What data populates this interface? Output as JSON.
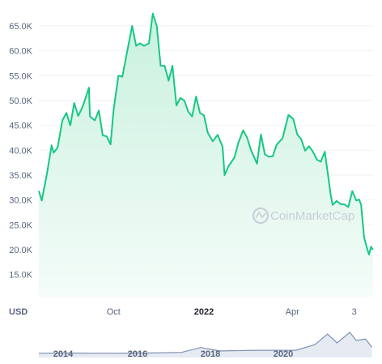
{
  "chart_data": {
    "type": "area",
    "title": "",
    "currency_label": "USD",
    "y_ticks": [
      "15.0K",
      "20.0K",
      "25.0K",
      "30.0K",
      "35.0K",
      "40.0K",
      "45.0K",
      "50.0K",
      "55.0K",
      "60.0K",
      "65.0K"
    ],
    "y_tick_values": [
      15000,
      20000,
      25000,
      30000,
      35000,
      40000,
      45000,
      50000,
      55000,
      60000,
      65000
    ],
    "ylim": [
      12000,
      68000
    ],
    "x_ticks": [
      {
        "label": "Oct",
        "date": "2021-10-01",
        "bold": false
      },
      {
        "label": "2022",
        "date": "2022-01-01",
        "bold": true
      },
      {
        "label": "Apr",
        "date": "2022-04-01",
        "bold": false
      },
      {
        "label": "3",
        "date": "2022-06-03",
        "bold": false
      }
    ],
    "xlim": [
      "2021-07-17",
      "2022-06-23"
    ],
    "grid": true,
    "watermark": "CoinMarketCap",
    "colors": {
      "line": "#16c784",
      "fill_top": "#c9f1de",
      "fill_bottom": "#f2fcf8",
      "volume": "#ccd0d8",
      "nav_line": "#8092b0"
    },
    "series": [
      {
        "points": [
          [
            "2021-07-17",
            31800
          ],
          [
            "2021-07-20",
            29900
          ],
          [
            "2021-07-25",
            35000
          ],
          [
            "2021-07-30",
            41000
          ],
          [
            "2021-08-01",
            39500
          ],
          [
            "2021-08-05",
            40500
          ],
          [
            "2021-08-10",
            46000
          ],
          [
            "2021-08-14",
            47500
          ],
          [
            "2021-08-18",
            45000
          ],
          [
            "2021-08-22",
            49500
          ],
          [
            "2021-08-26",
            46900
          ],
          [
            "2021-08-30",
            48500
          ],
          [
            "2021-09-02",
            50200
          ],
          [
            "2021-09-06",
            52600
          ],
          [
            "2021-09-07",
            46800
          ],
          [
            "2021-09-12",
            46000
          ],
          [
            "2021-09-16",
            48000
          ],
          [
            "2021-09-20",
            43000
          ],
          [
            "2021-09-24",
            42800
          ],
          [
            "2021-09-28",
            41200
          ],
          [
            "2021-10-01",
            48000
          ],
          [
            "2021-10-06",
            55000
          ],
          [
            "2021-10-10",
            54800
          ],
          [
            "2021-10-15",
            60000
          ],
          [
            "2021-10-20",
            65000
          ],
          [
            "2021-10-24",
            61000
          ],
          [
            "2021-10-28",
            61500
          ],
          [
            "2021-11-01",
            61000
          ],
          [
            "2021-11-06",
            61500
          ],
          [
            "2021-11-10",
            67500
          ],
          [
            "2021-11-14",
            65000
          ],
          [
            "2021-11-18",
            57000
          ],
          [
            "2021-11-22",
            57000
          ],
          [
            "2021-11-26",
            54000
          ],
          [
            "2021-11-30",
            57000
          ],
          [
            "2021-12-04",
            49000
          ],
          [
            "2021-12-08",
            50500
          ],
          [
            "2021-12-12",
            50000
          ],
          [
            "2021-12-16",
            47800
          ],
          [
            "2021-12-20",
            46800
          ],
          [
            "2021-12-24",
            50800
          ],
          [
            "2021-12-28",
            47500
          ],
          [
            "2022-01-01",
            47000
          ],
          [
            "2022-01-05",
            43500
          ],
          [
            "2022-01-10",
            41800
          ],
          [
            "2022-01-15",
            43100
          ],
          [
            "2022-01-20",
            40700
          ],
          [
            "2022-01-22",
            35000
          ],
          [
            "2022-01-26",
            36800
          ],
          [
            "2022-02-01",
            38500
          ],
          [
            "2022-02-05",
            41500
          ],
          [
            "2022-02-10",
            44000
          ],
          [
            "2022-02-14",
            42500
          ],
          [
            "2022-02-18",
            40000
          ],
          [
            "2022-02-24",
            37300
          ],
          [
            "2022-02-28",
            43200
          ],
          [
            "2022-03-04",
            39200
          ],
          [
            "2022-03-08",
            38700
          ],
          [
            "2022-03-12",
            38800
          ],
          [
            "2022-03-16",
            41100
          ],
          [
            "2022-03-22",
            42400
          ],
          [
            "2022-03-28",
            47100
          ],
          [
            "2022-04-02",
            46300
          ],
          [
            "2022-04-06",
            43200
          ],
          [
            "2022-04-10",
            42200
          ],
          [
            "2022-04-14",
            39900
          ],
          [
            "2022-04-18",
            40800
          ],
          [
            "2022-04-22",
            39700
          ],
          [
            "2022-04-26",
            38100
          ],
          [
            "2022-04-30",
            37700
          ],
          [
            "2022-05-04",
            39700
          ],
          [
            "2022-05-07",
            35500
          ],
          [
            "2022-05-10",
            31000
          ],
          [
            "2022-05-12",
            29000
          ],
          [
            "2022-05-16",
            29800
          ],
          [
            "2022-05-20",
            29200
          ],
          [
            "2022-05-24",
            29100
          ],
          [
            "2022-05-28",
            28600
          ],
          [
            "2022-06-01",
            31800
          ],
          [
            "2022-06-05",
            29900
          ],
          [
            "2022-06-08",
            30100
          ],
          [
            "2022-06-10",
            29000
          ],
          [
            "2022-06-13",
            22500
          ],
          [
            "2022-06-15",
            21000
          ],
          [
            "2022-06-18",
            19000
          ],
          [
            "2022-06-20",
            20600
          ],
          [
            "2022-06-22",
            20000
          ]
        ]
      }
    ],
    "navigator": {
      "year_labels": [
        "2014",
        "2016",
        "2018",
        "2020"
      ],
      "points": [
        [
          "2013-09",
          0.01
        ],
        [
          "2014-06",
          0.02
        ],
        [
          "2015-06",
          0.01
        ],
        [
          "2016-06",
          0.02
        ],
        [
          "2017-06",
          0.05
        ],
        [
          "2017-12",
          0.28
        ],
        [
          "2018-06",
          0.12
        ],
        [
          "2019-06",
          0.15
        ],
        [
          "2020-06",
          0.15
        ],
        [
          "2020-12",
          0.42
        ],
        [
          "2021-04",
          0.92
        ],
        [
          "2021-07",
          0.5
        ],
        [
          "2021-11",
          1.0
        ],
        [
          "2022-01",
          0.62
        ],
        [
          "2022-04",
          0.68
        ],
        [
          "2022-06",
          0.3
        ]
      ]
    }
  }
}
